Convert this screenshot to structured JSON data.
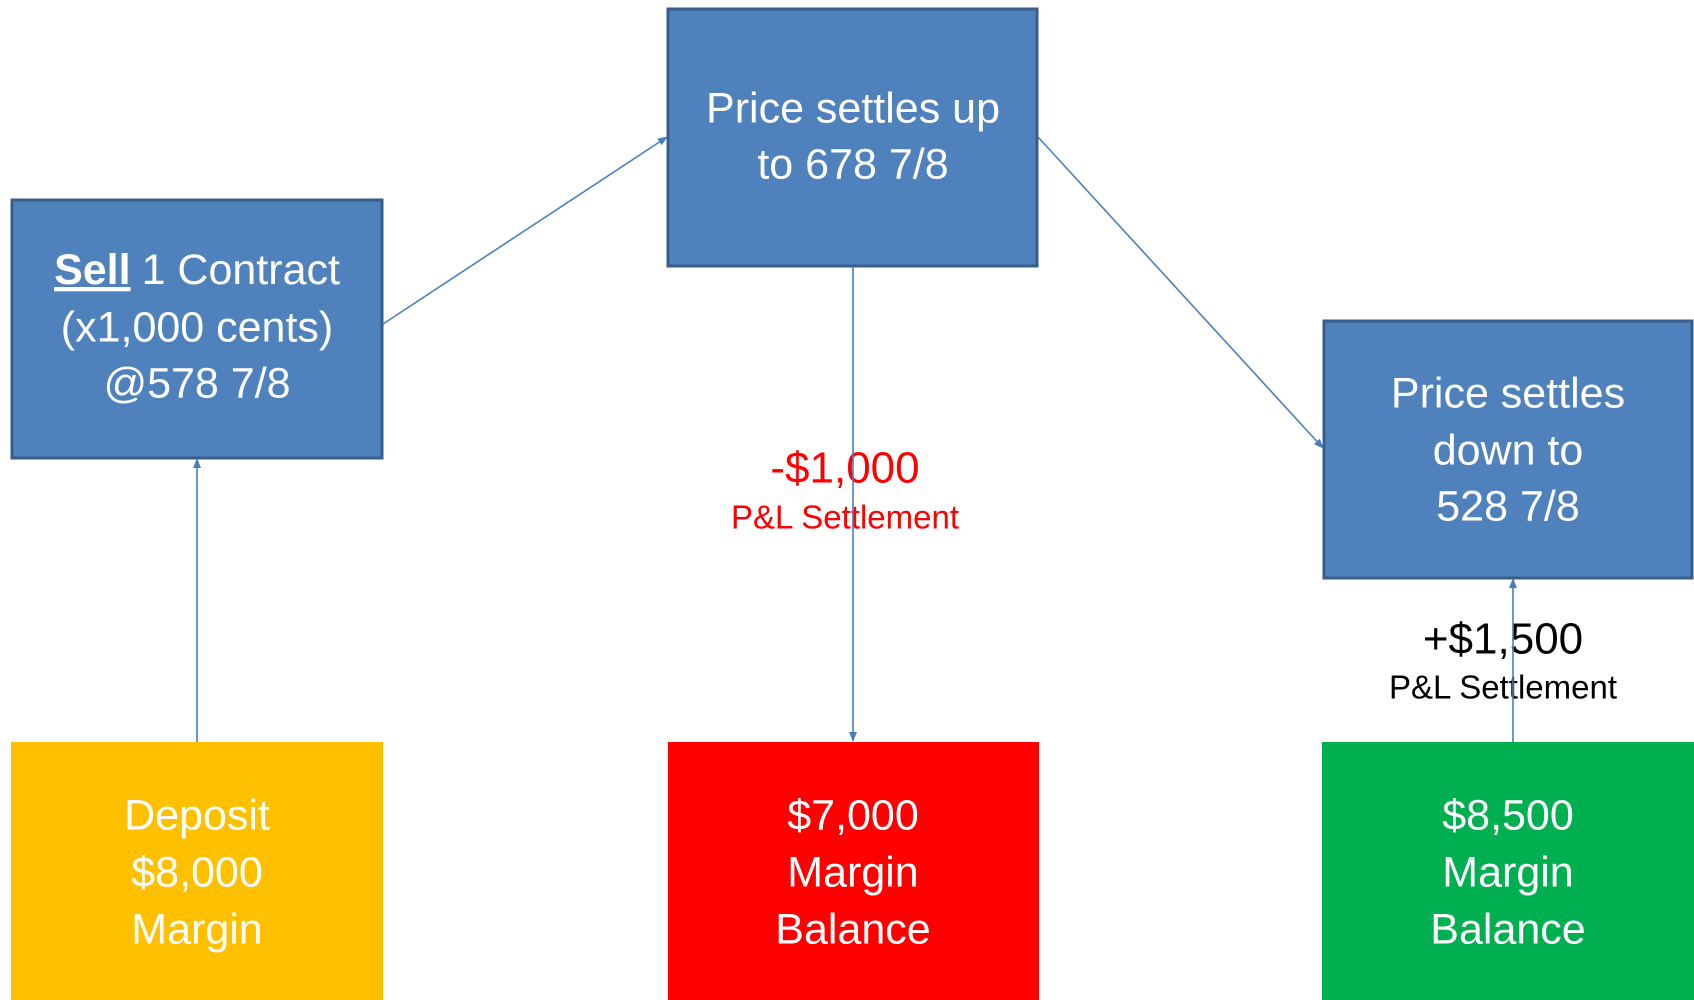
{
  "nodes": [
    {
      "action": "Sell",
      "action_rest": "1 Contract",
      "lines": [
        "(x1,000 cents)",
        "@578 7/8"
      ],
      "color": "#4f81bd"
    },
    {
      "lines": [
        "Price settles up",
        "to 678 7/8"
      ],
      "color": "#4f81bd"
    },
    {
      "lines": [
        "Price settles",
        "down to",
        "528 7/8"
      ],
      "color": "#4f81bd"
    },
    {
      "lines": [
        "Deposit",
        "$8,000",
        "Margin"
      ],
      "color": "#ffc000"
    },
    {
      "lines": [
        "$7,000",
        "Margin",
        "Balance"
      ],
      "color": "#ff0000"
    },
    {
      "lines": [
        "$8,500",
        "Margin",
        "Balance"
      ],
      "color": "#00b050"
    }
  ],
  "annotations": [
    {
      "amount": "-$1,000",
      "caption": "P&L Settlement",
      "color": "#ff0000"
    },
    {
      "amount": "+$1,500",
      "caption": "P&L Settlement",
      "color": "#000000"
    }
  ]
}
